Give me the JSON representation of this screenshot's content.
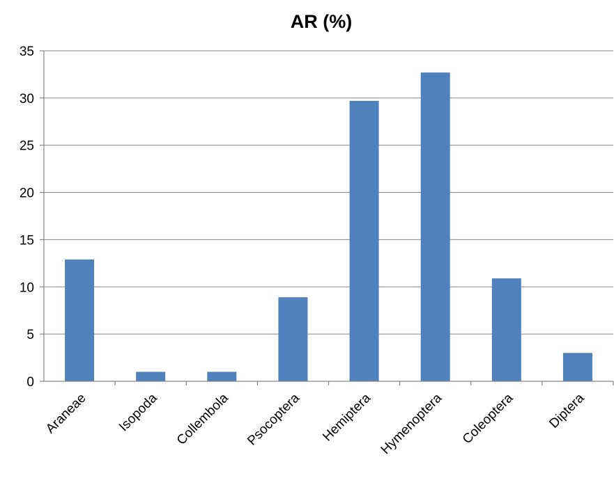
{
  "chart_data": {
    "type": "bar",
    "title": "AR (%)",
    "xlabel": "",
    "ylabel": "",
    "categories": [
      "Araneae",
      "Isopoda",
      "Collembola",
      "Psocoptera",
      "Hemiptera",
      "Hymenoptera",
      "Coleoptera",
      "Diptera"
    ],
    "values": [
      12.9,
      1.0,
      1.0,
      8.9,
      29.7,
      32.7,
      10.9,
      3.0
    ],
    "ylim": [
      0,
      35
    ],
    "yticks": [
      "0",
      "5",
      "10",
      "15",
      "20",
      "25",
      "30",
      "35"
    ],
    "grid": true,
    "legend": "none",
    "bar_color": "#4f81bd"
  }
}
